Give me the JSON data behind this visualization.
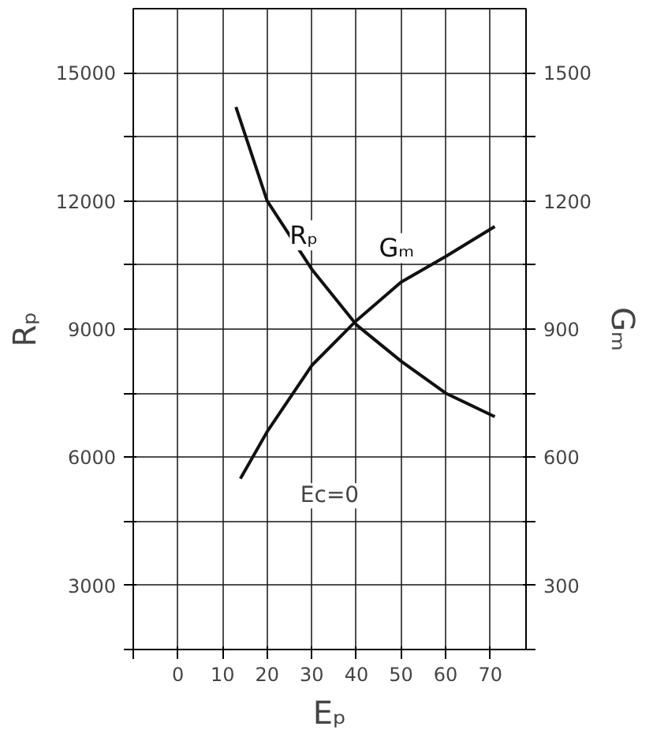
{
  "chart_data": {
    "type": "line",
    "xlabel": "Eₚ",
    "ylabel": "Rₚ",
    "y2label": "Gₘ",
    "x": [
      13,
      20,
      30,
      40,
      50,
      60,
      71
    ],
    "series": [
      {
        "name": "Rₚ",
        "color": "#111111",
        "values": [
          14200,
          12000,
          10400,
          9100,
          8250,
          7500,
          6950
        ]
      },
      {
        "name": "Gₘ",
        "color": "#111111",
        "axis": "y2",
        "x": [
          14,
          20,
          30,
          40,
          50,
          60,
          71
        ],
        "values": [
          550,
          660,
          815,
          920,
          1010,
          1070,
          1140
        ]
      }
    ],
    "xlim": [
      -10,
      78
    ],
    "xticks": [
      {
        "value": -10,
        "label": null
      },
      0,
      10,
      20,
      30,
      40,
      50,
      60,
      70
    ],
    "ylim": [
      1500,
      16500
    ],
    "yticks": [
      {
        "value": 1500,
        "label": null
      },
      3000,
      {
        "value": 4500,
        "label": null
      },
      6000,
      {
        "value": 7500,
        "label": null
      },
      9000,
      {
        "value": 10500,
        "label": null
      },
      12000,
      {
        "value": 13500,
        "label": null
      },
      15000
    ],
    "y2lim": [
      150,
      1650
    ],
    "y2ticks": [
      {
        "value": 150,
        "label": null
      },
      300,
      {
        "value": 450,
        "label": null
      },
      600,
      {
        "value": 750,
        "label": null
      },
      900,
      {
        "value": 1050,
        "label": null
      },
      1200,
      {
        "value": 1350,
        "label": null
      },
      1500
    ],
    "annotations": [
      "Ec=0"
    ],
    "grid": true,
    "marker": "none",
    "line_style": "solid"
  }
}
